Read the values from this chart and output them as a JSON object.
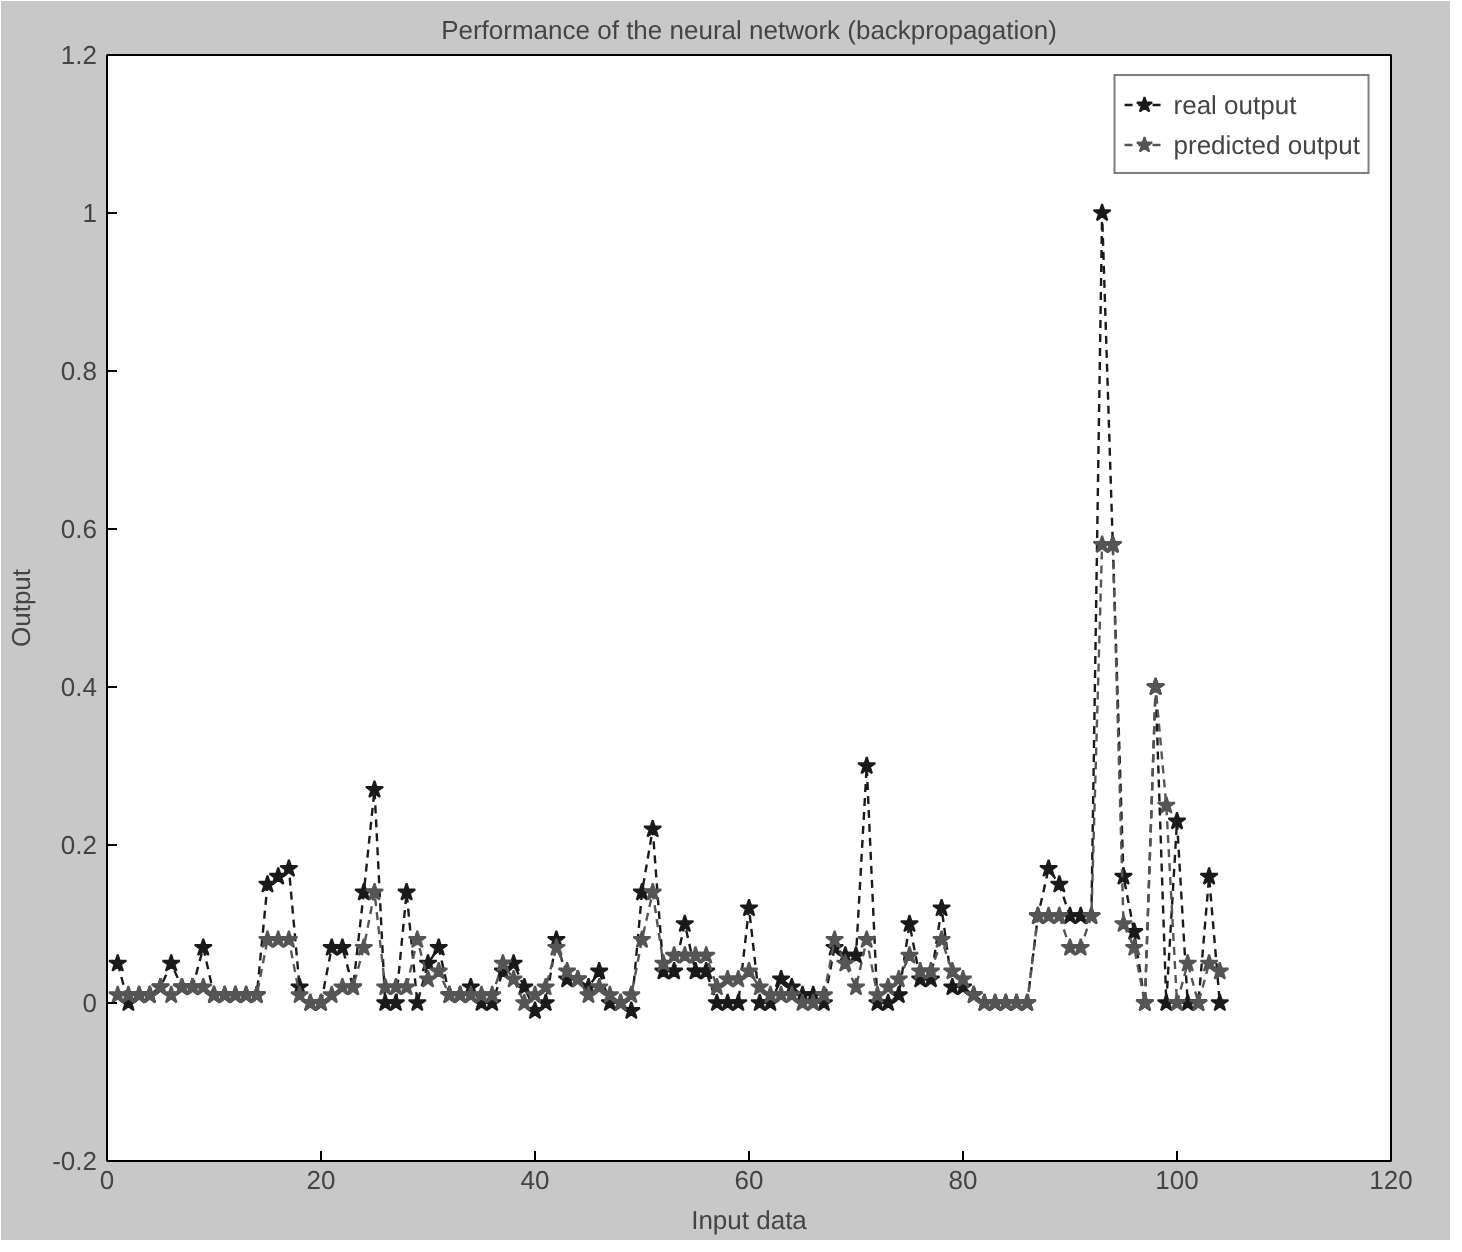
{
  "chart_data": {
    "type": "line",
    "title": "Performance of the neural network (backpropagation)",
    "xlabel": "Input data",
    "ylabel": "Output",
    "x": [
      1,
      2,
      3,
      4,
      5,
      6,
      7,
      8,
      9,
      10,
      11,
      12,
      13,
      14,
      15,
      16,
      17,
      18,
      19,
      20,
      21,
      22,
      23,
      24,
      25,
      26,
      27,
      28,
      29,
      30,
      31,
      32,
      33,
      34,
      35,
      36,
      37,
      38,
      39,
      40,
      41,
      42,
      43,
      44,
      45,
      46,
      47,
      48,
      49,
      50,
      51,
      52,
      53,
      54,
      55,
      56,
      57,
      58,
      59,
      60,
      61,
      62,
      63,
      64,
      65,
      66,
      67,
      68,
      69,
      70,
      71,
      72,
      73,
      74,
      75,
      76,
      77,
      78,
      79,
      80,
      81,
      82,
      83,
      84,
      85,
      86,
      87,
      88,
      89,
      90,
      91,
      92,
      93,
      94,
      95,
      96,
      97,
      98,
      99,
      100,
      101,
      102,
      103,
      104
    ],
    "series": [
      {
        "name": "real output",
        "color": "#1a1a1a",
        "values": [
          0.05,
          0.0,
          0.01,
          0.01,
          0.02,
          0.05,
          0.02,
          0.02,
          0.07,
          0.01,
          0.01,
          0.01,
          0.01,
          0.01,
          0.15,
          0.16,
          0.17,
          0.02,
          0.0,
          0.0,
          0.07,
          0.07,
          0.02,
          0.14,
          0.27,
          0.0,
          0.0,
          0.14,
          0.0,
          0.05,
          0.07,
          0.01,
          0.01,
          0.02,
          0.0,
          0.0,
          0.04,
          0.05,
          0.02,
          -0.01,
          0.0,
          0.08,
          0.03,
          0.03,
          0.02,
          0.04,
          0.0,
          0.0,
          -0.01,
          0.14,
          0.22,
          0.04,
          0.04,
          0.1,
          0.04,
          0.04,
          0.0,
          0.0,
          0.0,
          0.12,
          0.0,
          0.0,
          0.03,
          0.02,
          0.01,
          0.01,
          0.0,
          0.07,
          0.06,
          0.06,
          0.3,
          0.0,
          0.0,
          0.01,
          0.1,
          0.03,
          0.03,
          0.12,
          0.02,
          0.02,
          0.01,
          0.0,
          0.0,
          0.0,
          0.0,
          0.0,
          0.11,
          0.17,
          0.15,
          0.11,
          0.11,
          0.11,
          1.0,
          0.58,
          0.16,
          0.09,
          0.0,
          0.4,
          0.0,
          0.23,
          0.0,
          0.0,
          0.16,
          0.0
        ]
      },
      {
        "name": "predicted output",
        "color": "#555555",
        "values": [
          0.01,
          0.01,
          0.01,
          0.01,
          0.02,
          0.01,
          0.02,
          0.02,
          0.02,
          0.01,
          0.01,
          0.01,
          0.01,
          0.01,
          0.08,
          0.08,
          0.08,
          0.01,
          0.0,
          0.0,
          0.01,
          0.02,
          0.02,
          0.07,
          0.14,
          0.02,
          0.02,
          0.02,
          0.08,
          0.03,
          0.04,
          0.01,
          0.01,
          0.01,
          0.01,
          0.01,
          0.05,
          0.03,
          0.0,
          0.01,
          0.02,
          0.07,
          0.04,
          0.03,
          0.01,
          0.02,
          0.01,
          0.0,
          0.01,
          0.08,
          0.14,
          0.05,
          0.06,
          0.06,
          0.06,
          0.06,
          0.02,
          0.03,
          0.03,
          0.04,
          0.02,
          0.01,
          0.01,
          0.01,
          0.0,
          0.0,
          0.01,
          0.08,
          0.05,
          0.02,
          0.08,
          0.01,
          0.02,
          0.03,
          0.06,
          0.04,
          0.04,
          0.08,
          0.04,
          0.03,
          0.01,
          0.0,
          0.0,
          0.0,
          0.0,
          0.0,
          0.11,
          0.11,
          0.11,
          0.07,
          0.07,
          0.11,
          0.58,
          0.58,
          0.1,
          0.07,
          0.0,
          0.4,
          0.25,
          0.0,
          0.05,
          0.0,
          0.05,
          0.04
        ]
      }
    ],
    "xlim": [
      0,
      120
    ],
    "ylim": [
      -0.2,
      1.2
    ],
    "xticks": [
      0,
      20,
      40,
      60,
      80,
      100,
      120
    ],
    "yticks": [
      -0.2,
      0,
      0.2,
      0.4,
      0.6,
      0.8,
      1,
      1.2
    ],
    "grid": false,
    "legend": "top right",
    "marker": "star",
    "line_style": "dashed"
  }
}
